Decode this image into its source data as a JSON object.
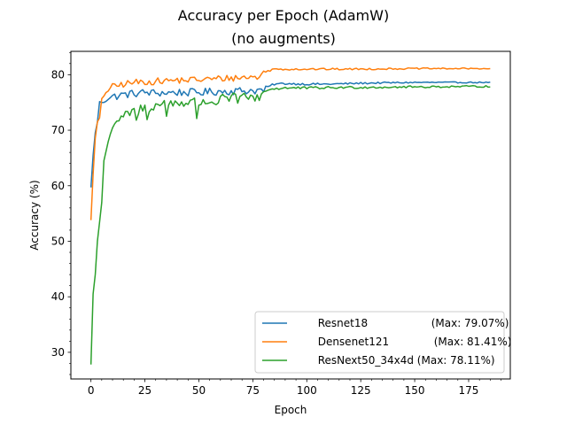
{
  "chart_data": {
    "type": "line",
    "title": "Accuracy per Epoch (AdamW)",
    "subtitle": "(no augments)",
    "xlabel": "Epoch",
    "ylabel": "Accuracy (%)",
    "xlim": [
      -9.3,
      194.3
    ],
    "ylim": [
      25.2,
      84.2
    ],
    "xticks": [
      0,
      25,
      50,
      75,
      100,
      125,
      150,
      175
    ],
    "yticks": [
      30,
      40,
      50,
      60,
      70,
      80
    ],
    "x_minor_step": 5,
    "y_minor_step": 2,
    "grid": false,
    "legend_position": "lower-right",
    "series": [
      {
        "name": "Resnet18",
        "legend_label": "Resnet18            (Max: 79.07%)",
        "color": "#1f77b4",
        "anchors": [
          [
            0,
            59.7
          ],
          [
            1,
            65.5
          ],
          [
            2,
            69.5
          ],
          [
            3,
            71.5
          ],
          [
            4,
            75.0
          ],
          [
            6,
            75.2
          ],
          [
            8,
            75.8
          ],
          [
            10,
            76.0
          ],
          [
            15,
            76.4
          ],
          [
            20,
            76.6
          ],
          [
            25,
            76.8
          ],
          [
            30,
            76.7
          ],
          [
            40,
            76.8
          ],
          [
            50,
            76.8
          ],
          [
            60,
            77.0
          ],
          [
            70,
            77.1
          ],
          [
            80,
            77.2
          ],
          [
            82,
            77.8
          ],
          [
            85,
            78.3
          ],
          [
            90,
            78.4
          ],
          [
            100,
            78.3
          ],
          [
            110,
            78.3
          ],
          [
            120,
            78.4
          ],
          [
            130,
            78.5
          ],
          [
            150,
            78.6
          ],
          [
            170,
            78.6
          ],
          [
            185,
            78.6
          ]
        ],
        "noise": [
          [
            0,
            0.0
          ],
          [
            5,
            0.3
          ],
          [
            10,
            0.7
          ],
          [
            80,
            0.7
          ],
          [
            82,
            0.2
          ],
          [
            185,
            0.1
          ]
        ]
      },
      {
        "name": "Densenet121",
        "legend_label": "Densenet121         (Max: 81.41%)",
        "color": "#ff7f0e",
        "anchors": [
          [
            0,
            53.8
          ],
          [
            1,
            62.0
          ],
          [
            2,
            68.5
          ],
          [
            3,
            71.5
          ],
          [
            4,
            72.0
          ],
          [
            5,
            75.5
          ],
          [
            7,
            77.0
          ],
          [
            10,
            77.8
          ],
          [
            15,
            78.3
          ],
          [
            20,
            78.6
          ],
          [
            30,
            78.8
          ],
          [
            40,
            79.0
          ],
          [
            50,
            79.1
          ],
          [
            60,
            79.3
          ],
          [
            70,
            79.5
          ],
          [
            78,
            79.6
          ],
          [
            80,
            80.5
          ],
          [
            85,
            81.0
          ],
          [
            90,
            81.0
          ],
          [
            100,
            81.0
          ],
          [
            120,
            81.0
          ],
          [
            150,
            81.1
          ],
          [
            170,
            81.1
          ],
          [
            185,
            81.1
          ]
        ],
        "noise": [
          [
            0,
            0.0
          ],
          [
            5,
            0.3
          ],
          [
            10,
            0.6
          ],
          [
            78,
            0.6
          ],
          [
            80,
            0.2
          ],
          [
            185,
            0.1
          ]
        ]
      },
      {
        "name": "ResNext50_34x4d",
        "legend_label": "ResNext50_34x4d (Max: 78.11%)",
        "color": "#2ca02c",
        "anchors": [
          [
            0,
            27.8
          ],
          [
            1,
            40.5
          ],
          [
            2,
            44.0
          ],
          [
            3,
            50.0
          ],
          [
            4,
            53.5
          ],
          [
            5,
            57.0
          ],
          [
            6,
            64.5
          ],
          [
            8,
            68.0
          ],
          [
            10,
            70.5
          ],
          [
            12,
            71.5
          ],
          [
            15,
            72.5
          ],
          [
            20,
            73.5
          ],
          [
            25,
            74.0
          ],
          [
            30,
            74.5
          ],
          [
            40,
            75.0
          ],
          [
            50,
            75.0
          ],
          [
            60,
            75.5
          ],
          [
            70,
            75.8
          ],
          [
            78,
            76.0
          ],
          [
            80,
            77.0
          ],
          [
            85,
            77.5
          ],
          [
            90,
            77.6
          ],
          [
            100,
            77.6
          ],
          [
            120,
            77.7
          ],
          [
            150,
            77.8
          ],
          [
            185,
            77.9
          ]
        ],
        "noise": [
          [
            0,
            0.0
          ],
          [
            12,
            0.2
          ],
          [
            18,
            1.0
          ],
          [
            78,
            1.0
          ],
          [
            80,
            0.25
          ],
          [
            185,
            0.15
          ]
        ],
        "dips": [
          [
            21,
            71.8
          ],
          [
            26,
            71.9
          ],
          [
            35,
            72.5
          ],
          [
            49,
            72.1
          ],
          [
            58,
            74.6
          ]
        ]
      }
    ]
  }
}
